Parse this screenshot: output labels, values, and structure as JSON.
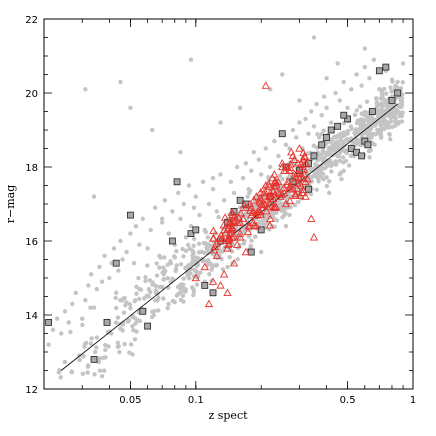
{
  "chart_data": {
    "type": "scatter",
    "title": "",
    "xlabel": "z spect",
    "ylabel": "r−mag",
    "xscale": "log",
    "xlim": [
      0.02,
      1.0
    ],
    "ylim": [
      12,
      22
    ],
    "x_ticks": [
      0.05,
      0.1,
      0.5,
      1
    ],
    "x_tick_labels": [
      "0.05",
      "0.1",
      "0.5",
      "1"
    ],
    "y_ticks": [
      12,
      14,
      16,
      18,
      20,
      22
    ],
    "y_tick_labels": [
      "12",
      "14",
      "16",
      "18",
      "20",
      "22"
    ],
    "grid": false,
    "legend": "none",
    "colors": {
      "background_points": "#c4c4c4",
      "square_points": "#a8a8a8",
      "triangle_points": "#e8322c",
      "fit_line": "#000000"
    },
    "fit_line": {
      "x": [
        0.024,
        0.85
      ],
      "y": [
        12.5,
        19.7
      ]
    },
    "series": [
      {
        "marker": "filled-circle",
        "x": [
          0.021,
          0.022,
          0.023,
          0.024,
          0.025,
          0.026,
          0.027,
          0.028,
          0.03,
          0.031,
          0.032,
          0.033,
          0.034,
          0.035,
          0.036,
          0.037,
          0.038,
          0.04,
          0.041,
          0.042,
          0.043,
          0.044,
          0.045,
          0.046,
          0.048,
          0.05,
          0.052,
          0.053,
          0.055,
          0.057,
          0.06,
          0.062,
          0.065,
          0.068,
          0.07,
          0.072,
          0.075,
          0.078,
          0.08,
          0.083,
          0.085,
          0.088,
          0.09,
          0.093,
          0.095,
          0.098,
          0.1,
          0.104,
          0.108,
          0.11,
          0.115,
          0.12,
          0.125,
          0.13,
          0.135,
          0.14,
          0.145,
          0.15,
          0.155,
          0.16,
          0.165,
          0.17,
          0.175,
          0.18,
          0.185,
          0.19,
          0.195,
          0.2,
          0.21,
          0.22,
          0.23,
          0.24,
          0.25,
          0.26,
          0.27,
          0.28,
          0.29,
          0.3,
          0.31,
          0.32,
          0.33,
          0.34,
          0.35,
          0.36,
          0.37,
          0.38,
          0.39,
          0.4,
          0.42,
          0.44,
          0.46,
          0.48,
          0.5,
          0.52,
          0.55,
          0.58,
          0.6,
          0.63,
          0.66,
          0.7,
          0.75,
          0.8,
          0.85,
          0.9,
          0.031,
          0.045,
          0.063,
          0.085,
          0.095,
          0.13,
          0.16,
          0.22,
          0.25,
          0.3,
          0.45,
          0.35,
          0.055,
          0.075,
          0.11,
          0.14,
          0.18,
          0.26,
          0.034,
          0.05,
          0.07,
          0.12,
          0.2,
          0.27,
          0.4,
          0.6
        ],
        "y": [
          13.2,
          13.6,
          13.9,
          13.5,
          14.1,
          13.8,
          14.3,
          14.6,
          13.9,
          14.4,
          14.8,
          15.1,
          14.2,
          14.7,
          15.3,
          14.9,
          15.6,
          15.0,
          15.4,
          15.8,
          14.6,
          15.2,
          16.0,
          15.5,
          15.7,
          16.2,
          15.4,
          16.4,
          15.9,
          16.6,
          15.8,
          16.3,
          16.9,
          15.6,
          16.5,
          17.1,
          16.2,
          16.8,
          15.9,
          17.3,
          16.6,
          17.0,
          16.1,
          17.5,
          16.4,
          16.9,
          17.2,
          16.7,
          17.6,
          16.3,
          17.0,
          17.4,
          16.8,
          17.8,
          17.1,
          16.6,
          17.6,
          17.3,
          18.0,
          16.9,
          17.7,
          18.1,
          17.4,
          17.9,
          18.4,
          17.2,
          18.2,
          17.8,
          18.5,
          18.0,
          18.7,
          18.3,
          18.9,
          18.6,
          18.1,
          19.0,
          18.8,
          19.2,
          18.5,
          19.3,
          18.9,
          19.5,
          19.1,
          19.7,
          18.8,
          19.4,
          19.9,
          19.6,
          19.2,
          20.0,
          19.8,
          20.3,
          19.6,
          20.1,
          20.5,
          20.2,
          20.7,
          20.4,
          20.9,
          20.1,
          20.6,
          19.9,
          20.3,
          20.8,
          20.1,
          20.3,
          19.0,
          18.4,
          20.9,
          19.2,
          19.6,
          20.1,
          20.5,
          19.8,
          20.8,
          21.5,
          14.7,
          14.3,
          14.9,
          15.3,
          15.8,
          16.4,
          17.2,
          19.6,
          16.6,
          17.7,
          15.7,
          18.5,
          20.4,
          21.2
        ]
      },
      {
        "marker": "square",
        "x": [
          0.021,
          0.034,
          0.039,
          0.043,
          0.05,
          0.057,
          0.06,
          0.078,
          0.082,
          0.095,
          0.1,
          0.11,
          0.13,
          0.15,
          0.16,
          0.18,
          0.2,
          0.22,
          0.25,
          0.28,
          0.3,
          0.33,
          0.35,
          0.38,
          0.4,
          0.45,
          0.5,
          0.52,
          0.55,
          0.6,
          0.65,
          0.7,
          0.75,
          0.8,
          0.85,
          0.12,
          0.14,
          0.17,
          0.26,
          0.33,
          0.42,
          0.48,
          0.58,
          0.62
        ],
        "y": [
          13.8,
          12.8,
          13.8,
          15.4,
          16.7,
          14.1,
          13.7,
          16.0,
          17.6,
          16.2,
          16.3,
          14.8,
          16.0,
          16.8,
          17.1,
          15.7,
          16.3,
          17.2,
          18.9,
          17.6,
          17.9,
          17.4,
          18.3,
          18.6,
          18.8,
          19.1,
          19.3,
          18.5,
          18.4,
          18.7,
          19.5,
          20.6,
          20.7,
          19.8,
          20.0,
          14.6,
          16.5,
          17.0,
          18.0,
          18.1,
          19.0,
          19.4,
          18.3,
          18.6
        ]
      },
      {
        "marker": "open-triangle",
        "x": [
          0.1,
          0.11,
          0.12,
          0.13,
          0.14,
          0.15,
          0.16,
          0.17,
          0.18,
          0.19,
          0.2,
          0.21,
          0.22,
          0.23,
          0.24,
          0.25,
          0.26,
          0.27,
          0.28,
          0.29,
          0.3,
          0.31,
          0.32,
          0.115,
          0.125,
          0.135,
          0.145,
          0.155,
          0.165,
          0.175,
          0.185,
          0.195,
          0.205,
          0.215,
          0.225,
          0.235,
          0.245,
          0.255,
          0.265,
          0.275,
          0.285,
          0.295,
          0.305,
          0.13,
          0.14,
          0.15,
          0.16,
          0.17,
          0.18,
          0.19,
          0.2,
          0.22,
          0.24,
          0.26,
          0.28,
          0.3,
          0.32,
          0.34,
          0.35,
          0.23,
          0.27,
          0.31,
          0.21,
          0.25
        ],
        "y": [
          15.0,
          15.3,
          14.9,
          16.0,
          15.8,
          16.5,
          16.2,
          16.9,
          16.7,
          17.2,
          17.0,
          17.5,
          17.3,
          17.8,
          17.6,
          18.1,
          17.9,
          17.4,
          18.3,
          17.7,
          18.5,
          18.0,
          17.6,
          14.3,
          15.6,
          15.1,
          16.3,
          15.9,
          16.6,
          16.4,
          17.1,
          16.8,
          17.4,
          17.1,
          17.7,
          17.5,
          17.2,
          17.9,
          17.6,
          18.4,
          17.8,
          18.1,
          17.5,
          14.8,
          14.6,
          15.4,
          16.1,
          15.7,
          16.9,
          16.4,
          17.1,
          16.6,
          17.3,
          17.0,
          17.4,
          17.7,
          17.2,
          16.6,
          16.1,
          16.9,
          17.9,
          17.3,
          20.2,
          18.0
        ]
      }
    ]
  }
}
